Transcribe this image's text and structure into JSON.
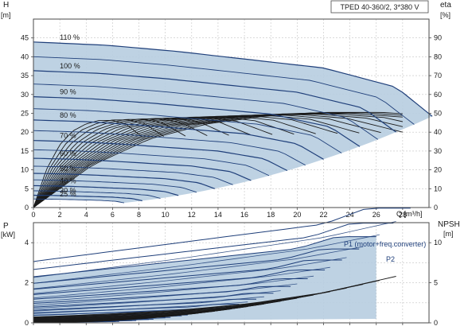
{
  "chart_data": [
    {
      "type": "line",
      "title": "TPED 40-360/2, 3*380 V",
      "xlabel": "Q [m³/h]",
      "ylabel_left": "H",
      "ylabel_left_unit": "[m]",
      "ylabel_right": "eta",
      "ylabel_right_unit": "[%]",
      "xlim": [
        0,
        30
      ],
      "ylim_left": [
        0,
        50
      ],
      "ylim_right": [
        0,
        100
      ],
      "x_ticks": [
        "0",
        "2",
        "4",
        "6",
        "8",
        "10",
        "12",
        "14",
        "16",
        "18",
        "20",
        "22",
        "24",
        "26",
        "28"
      ],
      "y_left_ticks": [
        "0",
        "5",
        "10",
        "15",
        "20",
        "25",
        "30",
        "35",
        "40",
        "45"
      ],
      "y_right_ticks": [
        "0",
        "10",
        "20",
        "30",
        "40",
        "50",
        "60",
        "70",
        "80",
        "90"
      ],
      "grid": true,
      "operating_area_color": "#b7cde0",
      "curve_color": "#1f3f7a",
      "eta_color": "#1a1a1a",
      "head_curves": [
        {
          "label": "110 %",
          "speed": 1.1
        },
        {
          "label": "100 %",
          "speed": 1.0
        },
        {
          "label": "90 %",
          "speed": 0.9
        },
        {
          "label": "80 %",
          "speed": 0.8
        },
        {
          "label": "70 %",
          "speed": 0.7
        },
        {
          "label": "60 %",
          "speed": 0.6
        },
        {
          "label": "50 %",
          "speed": 0.5
        },
        {
          "label": "40 %",
          "speed": 0.4
        },
        {
          "label": "30 %",
          "speed": 0.3
        },
        {
          "label": "25 %",
          "speed": 0.25
        }
      ],
      "speed_steps": [
        1.1,
        1.05,
        1.0,
        0.95,
        0.9,
        0.85,
        0.8,
        0.75,
        0.7,
        0.65,
        0.6,
        0.55,
        0.5,
        0.45,
        0.4,
        0.35,
        0.3,
        0.25
      ],
      "base_curve": {
        "q": [
          0,
          5,
          10,
          15,
          20,
          25,
          27.5
        ],
        "h": [
          36.3,
          35.6,
          34.2,
          32.4,
          30.6,
          26.4,
          20.0
        ]
      },
      "eta_base": {
        "q": [
          0,
          4,
          8,
          12,
          16,
          20,
          24,
          28
        ],
        "eta": [
          0,
          22,
          36,
          44,
          48,
          50,
          50,
          48
        ]
      }
    },
    {
      "type": "line",
      "xlabel": "",
      "ylabel_left": "P",
      "ylabel_left_unit": "[kW]",
      "ylabel_right": "NPSH",
      "ylabel_right_unit": "[m]",
      "xlim": [
        0,
        30
      ],
      "ylim_left": [
        0,
        5
      ],
      "ylim_right": [
        0,
        12.5
      ],
      "y_left_ticks": [
        "0",
        "2",
        "4"
      ],
      "y_right_ticks": [
        "0",
        "5",
        "10"
      ],
      "grid": true,
      "series": [
        {
          "name": "P1 (motor+freq.converter)"
        },
        {
          "name": "P2"
        }
      ],
      "p1_max": {
        "q": [
          0,
          10,
          20,
          23,
          26
        ],
        "p": [
          2.3,
          3.0,
          3.7,
          4.3,
          4.3
        ]
      },
      "p2_max": {
        "q": [
          0,
          10,
          20,
          25
        ],
        "p": [
          1.7,
          2.4,
          3.2,
          3.8
        ]
      },
      "npsh": {
        "q": [
          0,
          5,
          10,
          15,
          20,
          25
        ],
        "npsh": [
          0.6,
          0.9,
          1.3,
          2.0,
          3.1,
          4.8
        ]
      }
    }
  ]
}
